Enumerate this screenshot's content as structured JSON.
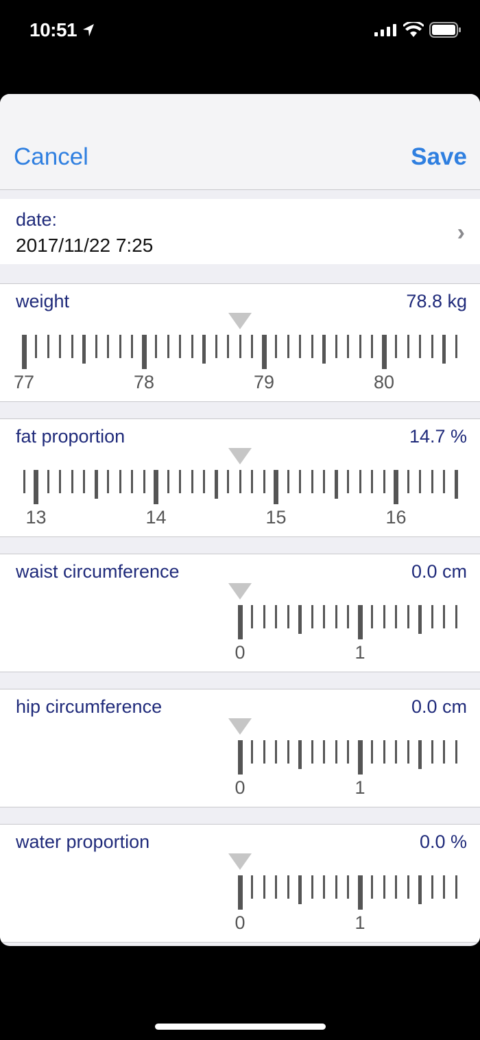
{
  "status_bar": {
    "time": "10:51",
    "icons": [
      "location-arrow-icon",
      "signal-icon",
      "wifi-icon",
      "battery-icon"
    ]
  },
  "nav": {
    "cancel_label": "Cancel",
    "save_label": "Save"
  },
  "date": {
    "label": "date:",
    "value": "2017/11/22 7:25"
  },
  "measurements": [
    {
      "label": "weight",
      "value_text": "78.8 kg",
      "value": 78.8
    },
    {
      "label": "fat proportion",
      "value_text": "14.7 %",
      "value": 14.7
    },
    {
      "label": "waist circumference",
      "value_text": "0.0 cm",
      "value": 0.0
    },
    {
      "label": "hip circumference",
      "value_text": "0.0 cm",
      "value": 0.0
    },
    {
      "label": "water proportion",
      "value_text": "0.0 %",
      "value": 0.0
    }
  ],
  "colors": {
    "accent": "#2f7fe0",
    "label": "#1f2a7a"
  }
}
